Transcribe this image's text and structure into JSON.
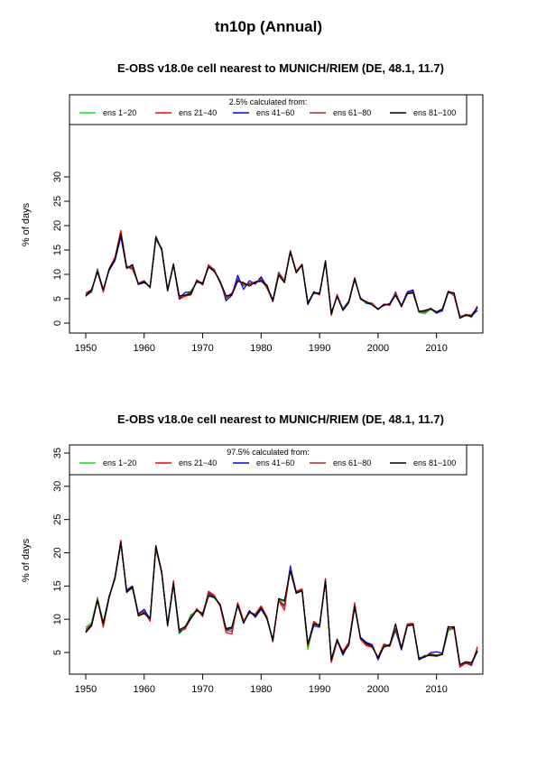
{
  "page_title": "tn10p (Annual)",
  "chart_data": [
    {
      "type": "line",
      "title": "E-OBS v18.0e cell nearest to MUNICH/RIEM (DE, 48.1, 11.7)",
      "xlabel": "",
      "ylabel": "% of days",
      "xlim": [
        1950,
        2017
      ],
      "ylim": [
        0,
        30
      ],
      "xticks": [
        1950,
        1960,
        1970,
        1980,
        1990,
        2000,
        2010
      ],
      "yticks": [
        0,
        5,
        10,
        15,
        20,
        25,
        30
      ],
      "grid": false,
      "legend": {
        "title": "2.5% calculated from:",
        "position": "top"
      },
      "x": [
        1950,
        1951,
        1952,
        1953,
        1954,
        1955,
        1956,
        1957,
        1958,
        1959,
        1960,
        1961,
        1962,
        1963,
        1964,
        1965,
        1966,
        1967,
        1968,
        1969,
        1970,
        1971,
        1972,
        1973,
        1974,
        1975,
        1976,
        1977,
        1978,
        1979,
        1980,
        1981,
        1982,
        1983,
        1984,
        1985,
        1986,
        1987,
        1988,
        1989,
        1990,
        1991,
        1992,
        1993,
        1994,
        1995,
        1996,
        1997,
        1998,
        1999,
        2000,
        2001,
        2002,
        2003,
        2004,
        2005,
        2006,
        2007,
        2008,
        2009,
        2010,
        2011,
        2012,
        2013,
        2014,
        2015,
        2016,
        2017
      ],
      "series": [
        {
          "name": "ens 1-20",
          "color": "#00ee00",
          "values": [
            5.8,
            6.3,
            11.2,
            6.5,
            11.0,
            13.0,
            18.5,
            11.5,
            11.2,
            8.0,
            8.4,
            7.4,
            17.2,
            15.0,
            6.8,
            11.8,
            5.2,
            5.6,
            6.6,
            8.3,
            8.2,
            11.5,
            10.8,
            8.4,
            5.0,
            5.9,
            9.2,
            7.6,
            8.2,
            8.1,
            9.2,
            7.1,
            4.7,
            10.5,
            8.6,
            14.5,
            10.4,
            11.8,
            4.3,
            6.0,
            6.1,
            12.4,
            2.0,
            5.6,
            3.0,
            4.4,
            9.0,
            5.0,
            4.0,
            3.9,
            2.9,
            3.7,
            3.8,
            6.0,
            3.5,
            6.0,
            6.3,
            2.2,
            1.9,
            2.8,
            2.3,
            2.6,
            6.2,
            6.0,
            1.3,
            1.5,
            1.8,
            3.1
          ]
        },
        {
          "name": "ens 21-40",
          "color": "#ff0000",
          "values": [
            6.2,
            6.8,
            10.6,
            6.3,
            11.2,
            13.5,
            19.0,
            11.6,
            11.0,
            8.2,
            8.7,
            7.3,
            17.6,
            15.1,
            6.6,
            12.2,
            4.9,
            5.5,
            5.8,
            8.9,
            7.8,
            12.0,
            10.9,
            8.2,
            5.2,
            6.2,
            8.8,
            8.1,
            7.9,
            8.5,
            8.8,
            7.2,
            4.5,
            10.1,
            8.8,
            14.9,
            10.7,
            12.1,
            3.9,
            6.3,
            5.8,
            12.7,
            1.6,
            5.9,
            2.7,
            4.6,
            9.3,
            4.9,
            4.3,
            4.1,
            2.8,
            3.9,
            3.6,
            6.4,
            3.3,
            6.2,
            6.5,
            2.4,
            2.3,
            3.0,
            2.0,
            2.7,
            6.6,
            5.6,
            1.1,
            1.7,
            1.2,
            3.5
          ]
        },
        {
          "name": "ens 41-60",
          "color": "#0000ff",
          "values": [
            5.6,
            6.5,
            10.9,
            6.8,
            10.8,
            12.8,
            17.7,
            11.3,
            11.8,
            7.9,
            8.3,
            7.5,
            17.2,
            15.3,
            6.9,
            11.9,
            5.0,
            6.3,
            6.4,
            8.5,
            8.0,
            11.6,
            10.7,
            8.6,
            4.6,
            5.7,
            9.8,
            6.9,
            8.7,
            8.0,
            9.5,
            7.5,
            4.8,
            10.2,
            8.8,
            14.6,
            10.5,
            11.9,
            3.8,
            6.2,
            6.2,
            12.5,
            2.2,
            5.4,
            2.9,
            4.5,
            8.9,
            5.2,
            4.1,
            3.8,
            3.0,
            3.6,
            4.0,
            6.2,
            3.6,
            6.4,
            6.8,
            2.3,
            2.6,
            2.9,
            2.1,
            2.5,
            6.3,
            5.9,
            1.4,
            1.6,
            1.5,
            2.6
          ]
        },
        {
          "name": "ens 61-80",
          "color": "#a52a2a",
          "values": [
            5.9,
            6.6,
            10.8,
            6.6,
            11.1,
            13.2,
            18.6,
            11.7,
            11.3,
            8.1,
            8.6,
            7.2,
            17.4,
            15.2,
            6.7,
            12.0,
            5.3,
            5.8,
            6.2,
            8.6,
            8.3,
            11.8,
            11.0,
            8.3,
            5.1,
            6.0,
            9.0,
            7.8,
            8.2,
            8.3,
            9.0,
            7.3,
            4.6,
            10.4,
            8.7,
            14.7,
            10.6,
            12.0,
            4.2,
            6.1,
            6.0,
            12.6,
            1.8,
            5.7,
            2.8,
            4.3,
            9.1,
            5.1,
            4.2,
            4.0,
            2.9,
            3.8,
            3.7,
            6.1,
            3.4,
            6.1,
            6.4,
            2.3,
            2.2,
            3.1,
            2.2,
            2.8,
            6.5,
            5.8,
            1.2,
            1.8,
            1.6,
            3.3
          ]
        },
        {
          "name": "ens 81-100",
          "color": "#000000",
          "values": [
            5.5,
            6.9,
            10.5,
            6.9,
            11.0,
            13.1,
            18.3,
            11.2,
            12.0,
            8.0,
            8.5,
            7.4,
            17.8,
            15.0,
            6.6,
            12.1,
            5.6,
            5.7,
            6.0,
            8.7,
            8.1,
            11.5,
            10.6,
            8.5,
            5.6,
            5.8,
            8.6,
            8.3,
            7.6,
            8.4,
            8.6,
            7.8,
            4.4,
            9.8,
            8.3,
            14.7,
            10.3,
            12.0,
            4.0,
            6.4,
            5.9,
            12.8,
            1.9,
            5.5,
            2.6,
            4.2,
            9.2,
            5.0,
            4.4,
            3.7,
            2.8,
            3.8,
            3.9,
            5.7,
            3.4,
            6.0,
            6.2,
            2.4,
            2.6,
            2.9,
            2.3,
            2.9,
            6.4,
            6.2,
            1.0,
            1.6,
            1.4,
            3.2
          ]
        }
      ]
    },
    {
      "type": "line",
      "title": "E-OBS v18.0e cell nearest to MUNICH/RIEM (DE, 48.1, 11.7)",
      "xlabel": "",
      "ylabel": "% of days",
      "xlim": [
        1950,
        2017
      ],
      "ylim": [
        3,
        35
      ],
      "xticks": [
        1950,
        1960,
        1970,
        1980,
        1990,
        2000,
        2010
      ],
      "yticks": [
        5,
        10,
        15,
        20,
        25,
        30,
        35
      ],
      "grid": false,
      "legend": {
        "title": "97.5% calculated from:",
        "position": "top"
      },
      "x": [
        1950,
        1951,
        1952,
        1953,
        1954,
        1955,
        1956,
        1957,
        1958,
        1959,
        1960,
        1961,
        1962,
        1963,
        1964,
        1965,
        1966,
        1967,
        1968,
        1969,
        1970,
        1971,
        1972,
        1973,
        1974,
        1975,
        1976,
        1977,
        1978,
        1979,
        1980,
        1981,
        1982,
        1983,
        1984,
        1985,
        1986,
        1987,
        1988,
        1989,
        1990,
        1991,
        1992,
        1993,
        1994,
        1995,
        1996,
        1997,
        1998,
        1999,
        2000,
        2001,
        2002,
        2003,
        2004,
        2005,
        2006,
        2007,
        2008,
        2009,
        2010,
        2011,
        2012,
        2013,
        2014,
        2015,
        2016,
        2017
      ],
      "series": [
        {
          "name": "ens 1-20",
          "color": "#00ee00",
          "values": [
            8.8,
            9.5,
            13.3,
            9.5,
            13.4,
            16.0,
            21.5,
            14.2,
            14.6,
            10.6,
            10.8,
            10.2,
            20.5,
            17.0,
            9.2,
            15.2,
            7.8,
            8.8,
            10.7,
            11.2,
            11.0,
            13.6,
            13.2,
            12.0,
            8.5,
            8.9,
            12.0,
            9.5,
            11.0,
            10.6,
            11.6,
            10.0,
            6.8,
            13.0,
            12.6,
            17.5,
            14.0,
            14.2,
            5.5,
            9.2,
            9.1,
            15.8,
            3.8,
            6.9,
            4.8,
            6.2,
            11.8,
            7.2,
            6.3,
            6.0,
            4.2,
            5.8,
            6.0,
            8.2,
            5.6,
            9.0,
            9.1,
            4.1,
            4.6,
            4.5,
            4.4,
            4.7,
            8.2,
            8.8,
            3.1,
            3.6,
            3.4,
            5.1
          ]
        },
        {
          "name": "ens 21-40",
          "color": "#ff0000",
          "values": [
            8.2,
            9.2,
            13.0,
            8.8,
            13.2,
            16.4,
            21.9,
            14.0,
            14.8,
            10.9,
            11.2,
            9.7,
            21.0,
            17.2,
            9.0,
            15.8,
            8.3,
            8.5,
            10.2,
            11.6,
            10.4,
            14.2,
            13.6,
            11.9,
            8.0,
            7.8,
            12.5,
            9.8,
            10.9,
            10.8,
            12.0,
            10.4,
            6.6,
            12.8,
            11.4,
            17.7,
            14.2,
            14.6,
            6.0,
            9.7,
            9.0,
            16.1,
            3.5,
            6.6,
            5.2,
            6.5,
            12.5,
            7.0,
            6.0,
            5.8,
            4.3,
            6.3,
            5.9,
            8.5,
            5.8,
            9.3,
            9.4,
            4.0,
            4.4,
            4.8,
            4.6,
            4.8,
            8.6,
            8.5,
            2.8,
            3.4,
            3.0,
            5.9
          ]
        },
        {
          "name": "ens 41-60",
          "color": "#0000ff",
          "values": [
            8.0,
            9.0,
            12.9,
            9.3,
            13.5,
            16.2,
            21.4,
            14.4,
            15.0,
            10.8,
            11.5,
            10.0,
            20.8,
            17.1,
            9.3,
            15.5,
            8.0,
            8.7,
            10.5,
            11.3,
            10.9,
            13.8,
            13.4,
            12.2,
            8.4,
            8.6,
            12.1,
            9.6,
            11.3,
            10.3,
            11.5,
            10.2,
            6.9,
            12.9,
            12.1,
            18.0,
            14.1,
            14.4,
            6.2,
            9.0,
            8.8,
            16.0,
            3.7,
            6.8,
            4.6,
            6.4,
            12.0,
            7.3,
            6.5,
            6.2,
            3.9,
            6.0,
            6.2,
            8.4,
            5.4,
            9.1,
            9.2,
            4.2,
            4.3,
            5.0,
            5.1,
            4.9,
            8.9,
            8.7,
            3.0,
            3.5,
            3.2,
            5.3
          ]
        },
        {
          "name": "ens 61-80",
          "color": "#a52a2a",
          "values": [
            8.5,
            9.3,
            13.1,
            9.2,
            13.3,
            16.1,
            21.7,
            14.3,
            14.7,
            10.7,
            11.0,
            9.9,
            20.7,
            17.0,
            9.1,
            15.4,
            8.2,
            8.6,
            10.4,
            11.5,
            10.8,
            14.0,
            13.5,
            12.1,
            8.3,
            8.2,
            12.3,
            9.7,
            11.1,
            10.7,
            11.8,
            10.3,
            6.7,
            12.9,
            11.9,
            17.6,
            14.0,
            14.5,
            5.9,
            9.4,
            9.2,
            15.9,
            3.6,
            6.7,
            4.9,
            6.3,
            12.2,
            7.1,
            6.2,
            6.0,
            4.1,
            6.1,
            6.0,
            8.6,
            5.7,
            9.2,
            9.3,
            4.0,
            4.5,
            4.7,
            4.5,
            4.8,
            8.5,
            8.6,
            3.0,
            3.5,
            3.3,
            5.6
          ]
        },
        {
          "name": "ens 81-100",
          "color": "#000000",
          "values": [
            8.1,
            9.1,
            12.8,
            9.4,
            13.3,
            16.3,
            21.6,
            14.1,
            14.9,
            10.5,
            10.9,
            10.1,
            21.1,
            16.9,
            9.0,
            15.3,
            8.4,
            8.9,
            10.1,
            11.4,
            10.6,
            13.5,
            13.3,
            12.2,
            8.6,
            8.8,
            12.2,
            9.4,
            11.2,
            10.5,
            11.7,
            10.1,
            6.8,
            13.1,
            12.8,
            17.3,
            13.9,
            14.3,
            6.3,
            9.3,
            9.0,
            15.7,
            3.9,
            7.0,
            4.9,
            6.1,
            11.9,
            7.2,
            6.4,
            5.9,
            4.2,
            5.9,
            6.1,
            9.3,
            5.5,
            9.0,
            9.2,
            3.9,
            4.4,
            4.6,
            4.5,
            4.7,
            8.8,
            8.9,
            3.2,
            3.6,
            3.5,
            5.2
          ]
        }
      ]
    }
  ]
}
